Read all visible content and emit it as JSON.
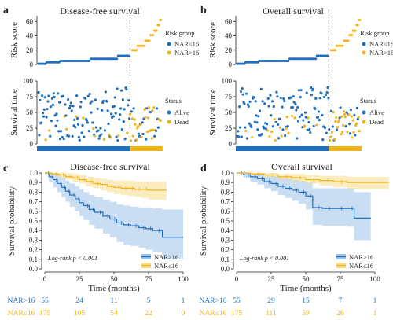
{
  "colors": {
    "blue": "#1f6fbf",
    "yellow": "#f0b41a",
    "blue_band": "#9cc3ea",
    "yellow_band": "#f8dc8c",
    "axis": "#222222",
    "dash": "#555555"
  },
  "chart_data": [
    {
      "panel": "a",
      "type": "scatter",
      "title": "Disease-free survival",
      "risk_plot": {
        "ylabel": "Risk score",
        "yticks": [
          "0",
          "20",
          "40",
          "60"
        ],
        "legend_title": "Risk group",
        "legend": [
          "NAR≤16",
          "NAR>16"
        ],
        "low_levels": [
          {
            "score": 1,
            "fraction": 0.09
          },
          {
            "score": 3,
            "fraction": 0.15
          },
          {
            "score": 5,
            "fraction": 0.33
          },
          {
            "score": 8,
            "fraction": 0.3
          },
          {
            "score": 12,
            "fraction": 0.13
          }
        ],
        "high_levels": [
          {
            "score": 20,
            "fraction": 0.18
          },
          {
            "score": 26,
            "fraction": 0.26
          },
          {
            "score": 33,
            "fraction": 0.18
          },
          {
            "score": 41,
            "fraction": 0.12
          },
          {
            "score": 47,
            "fraction": 0.12
          },
          {
            "score": 55,
            "fraction": 0.08
          },
          {
            "score": 62,
            "fraction": 0.06
          }
        ]
      },
      "time_plot": {
        "ylabel": "Survival time",
        "yticks": [
          "0",
          "25",
          "50",
          "75",
          "100"
        ],
        "legend_title": "Status",
        "legend": [
          "Alive",
          "Dead"
        ]
      }
    },
    {
      "panel": "b",
      "type": "scatter",
      "title": "Overall survival",
      "risk_plot": {
        "ylabel": "Risk score",
        "yticks": [
          "0",
          "20",
          "40",
          "60"
        ],
        "legend_title": "Risk group",
        "legend": [
          "NAR≤16",
          "NAR>16"
        ],
        "low_levels": [
          {
            "score": 1,
            "fraction": 0.09
          },
          {
            "score": 3,
            "fraction": 0.15
          },
          {
            "score": 5,
            "fraction": 0.33
          },
          {
            "score": 8,
            "fraction": 0.3
          },
          {
            "score": 12,
            "fraction": 0.13
          }
        ],
        "high_levels": [
          {
            "score": 20,
            "fraction": 0.18
          },
          {
            "score": 26,
            "fraction": 0.26
          },
          {
            "score": 33,
            "fraction": 0.18
          },
          {
            "score": 41,
            "fraction": 0.12
          },
          {
            "score": 47,
            "fraction": 0.12
          },
          {
            "score": 55,
            "fraction": 0.08
          },
          {
            "score": 62,
            "fraction": 0.06
          }
        ]
      },
      "time_plot": {
        "ylabel": "Survival time",
        "yticks": [
          "0",
          "25",
          "50",
          "75",
          "100"
        ],
        "legend_title": "Status",
        "legend": [
          "Alive",
          "Dead"
        ]
      }
    },
    {
      "panel": "c",
      "type": "line",
      "title": "Disease-free survival",
      "xlabel": "Time (months)",
      "ylabel": "Survival probability",
      "xlim": [
        0,
        100
      ],
      "ylim": [
        0,
        1
      ],
      "xticks": [
        "0",
        "25",
        "50",
        "75",
        "100"
      ],
      "yticks": [
        "0.0",
        "0.1",
        "0.2",
        "0.3",
        "0.4",
        "0.5",
        "0.6",
        "0.7",
        "0.8",
        "0.9",
        "1.0"
      ],
      "annotation": "Log-rank p < 0.001",
      "legend": [
        "NAR>16",
        "NAR≤16"
      ],
      "series": [
        {
          "name": "NAR>16",
          "color": "blue",
          "end": 100,
          "t": [
            0,
            3,
            6,
            9,
            12,
            15,
            18,
            22,
            25,
            28,
            32,
            36,
            42,
            47,
            52,
            57,
            62,
            68,
            73,
            78,
            85
          ],
          "s": [
            1.0,
            0.96,
            0.93,
            0.89,
            0.85,
            0.81,
            0.77,
            0.73,
            0.69,
            0.66,
            0.62,
            0.59,
            0.55,
            0.52,
            0.48,
            0.46,
            0.45,
            0.43,
            0.42,
            0.4,
            0.33
          ],
          "lo": [
            1.0,
            0.9,
            0.85,
            0.8,
            0.75,
            0.7,
            0.65,
            0.6,
            0.55,
            0.51,
            0.46,
            0.42,
            0.37,
            0.33,
            0.28,
            0.25,
            0.24,
            0.22,
            0.2,
            0.18,
            0.1
          ],
          "hi": [
            1.0,
            1.0,
            1.0,
            0.98,
            0.95,
            0.92,
            0.89,
            0.86,
            0.83,
            0.8,
            0.77,
            0.75,
            0.72,
            0.7,
            0.67,
            0.66,
            0.65,
            0.64,
            0.64,
            0.63,
            0.62
          ]
        },
        {
          "name": "NAR≤16",
          "color": "yellow",
          "end": 88,
          "t": [
            0,
            5,
            10,
            15,
            20,
            25,
            30,
            35,
            40,
            45,
            50,
            55,
            60,
            65,
            70,
            75
          ],
          "s": [
            1.0,
            0.99,
            0.98,
            0.96,
            0.95,
            0.93,
            0.91,
            0.89,
            0.88,
            0.86,
            0.85,
            0.84,
            0.84,
            0.83,
            0.83,
            0.82
          ],
          "lo": [
            1.0,
            0.97,
            0.95,
            0.93,
            0.91,
            0.89,
            0.86,
            0.84,
            0.82,
            0.8,
            0.78,
            0.77,
            0.76,
            0.75,
            0.74,
            0.72
          ],
          "hi": [
            1.0,
            1.0,
            1.0,
            1.0,
            0.99,
            0.98,
            0.96,
            0.95,
            0.94,
            0.93,
            0.92,
            0.92,
            0.92,
            0.91,
            0.91,
            0.91
          ]
        }
      ],
      "risk_table": {
        "rows": [
          {
            "label": "NAR>16",
            "color": "blue",
            "values": [
              "55",
              "24",
              "11",
              "5",
              "1"
            ]
          },
          {
            "label": "NAR≤16",
            "color": "yellow",
            "values": [
              "175",
              "105",
              "54",
              "22",
              "0"
            ]
          }
        ]
      }
    },
    {
      "panel": "d",
      "type": "line",
      "title": "Overall survival",
      "xlabel": "Time (months)",
      "ylabel": "Survival probability",
      "xlim": [
        0,
        100
      ],
      "ylim": [
        0,
        1
      ],
      "xticks": [
        "0",
        "25",
        "50",
        "75",
        "100"
      ],
      "yticks": [
        "0.0",
        "0.1",
        "0.2",
        "0.3",
        "0.4",
        "0.5",
        "0.6",
        "0.7",
        "0.8",
        "0.9",
        "1.0"
      ],
      "annotation": "Log-rank p < 0.001",
      "legend": [
        "NAR>16",
        "NAR≤16"
      ],
      "series": [
        {
          "name": "NAR>16",
          "color": "blue",
          "end": 97,
          "t": [
            0,
            5,
            10,
            15,
            20,
            25,
            30,
            35,
            40,
            45,
            50,
            55,
            62,
            70,
            80,
            85
          ],
          "s": [
            1.0,
            0.98,
            0.96,
            0.94,
            0.91,
            0.89,
            0.86,
            0.84,
            0.82,
            0.8,
            0.76,
            0.64,
            0.63,
            0.63,
            0.63,
            0.53
          ],
          "lo": [
            1.0,
            0.95,
            0.91,
            0.88,
            0.84,
            0.81,
            0.77,
            0.74,
            0.71,
            0.68,
            0.62,
            0.46,
            0.45,
            0.45,
            0.44,
            0.3
          ],
          "hi": [
            1.0,
            1.0,
            1.0,
            1.0,
            0.98,
            0.97,
            0.95,
            0.94,
            0.93,
            0.92,
            0.9,
            0.84,
            0.84,
            0.84,
            0.84,
            0.8
          ]
        },
        {
          "name": "NAR≤16",
          "color": "yellow",
          "end": 110,
          "t": [
            0,
            10,
            20,
            30,
            40,
            50,
            60,
            70,
            80
          ],
          "s": [
            1.0,
            0.99,
            0.98,
            0.96,
            0.95,
            0.93,
            0.92,
            0.91,
            0.9
          ],
          "lo": [
            1.0,
            0.98,
            0.96,
            0.93,
            0.91,
            0.89,
            0.87,
            0.85,
            0.83
          ],
          "hi": [
            1.0,
            1.0,
            1.0,
            0.99,
            0.99,
            0.98,
            0.97,
            0.97,
            0.96
          ]
        }
      ],
      "risk_table": {
        "rows": [
          {
            "label": "NAR>16",
            "color": "blue",
            "values": [
              "55",
              "29",
              "15",
              "7",
              "1"
            ]
          },
          {
            "label": "NAR≤16",
            "color": "yellow",
            "values": [
              "175",
              "111",
              "59",
              "26",
              "1"
            ]
          }
        ]
      }
    }
  ]
}
